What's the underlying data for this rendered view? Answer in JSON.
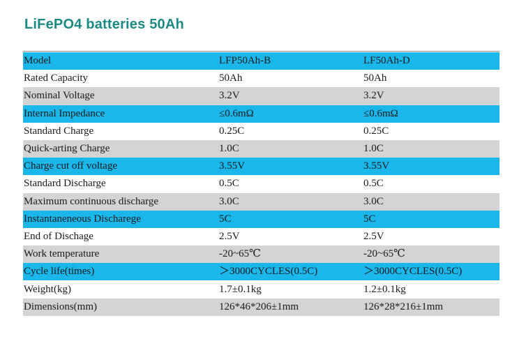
{
  "title": "LiFePO4 batteries 50Ah",
  "colors": {
    "title": "#1a8a82",
    "cyan_row": "#1bb6ea",
    "gray_row": "#d4d4d4"
  },
  "table": {
    "rows": [
      {
        "label": "Model",
        "a": "LFP50Ah-B",
        "b": "LF50Ah-D",
        "style": "cyan"
      },
      {
        "label": "Rated Capacity",
        "a": "50Ah",
        "b": "50Ah",
        "style": "white"
      },
      {
        "label": "Nominal Voltage",
        "a": "3.2V",
        "b": "3.2V",
        "style": "gray"
      },
      {
        "label": "Internal Impedance",
        "a": "≤0.6mΩ",
        "b": "≤0.6mΩ",
        "style": "cyan"
      },
      {
        "label": "Standard Charge",
        "a": "0.25C",
        "b": "0.25C",
        "style": "white"
      },
      {
        "label": "Quick-arting Charge",
        "a": "1.0C",
        "b": "1.0C",
        "style": "gray"
      },
      {
        "label": "Charge cut off voltage",
        "a": "3.55V",
        "b": "3.55V",
        "style": "cyan"
      },
      {
        "label": "Standard Discharge",
        "a": "0.5C",
        "b": "0.5C",
        "style": "white"
      },
      {
        "label": "Maximum continuous discharge",
        "a": "3.0C",
        "b": "3.0C",
        "style": "gray"
      },
      {
        "label": "Instantaneneous Discharege",
        "a": "5C",
        "b": "5C",
        "style": "cyan"
      },
      {
        "label": "End of Dischage",
        "a": "2.5V",
        "b": "2.5V",
        "style": "white"
      },
      {
        "label": "Work temperature",
        "a": "-20~65℃",
        "b": "-20~65℃",
        "style": "gray"
      },
      {
        "label": "Cycle life(times)",
        "a": "＞3000CYCLES(0.5C)",
        "b": "＞3000CYCLES(0.5C)",
        "style": "cyan"
      },
      {
        "label": "Weight(kg)",
        "a": "1.7±0.1kg",
        "b": "1.2±0.1kg",
        "style": "white"
      },
      {
        "label": "Dimensions(mm)",
        "a": "126*46*206±1mm",
        "b": "126*28*216±1mm",
        "style": "gray"
      }
    ]
  }
}
